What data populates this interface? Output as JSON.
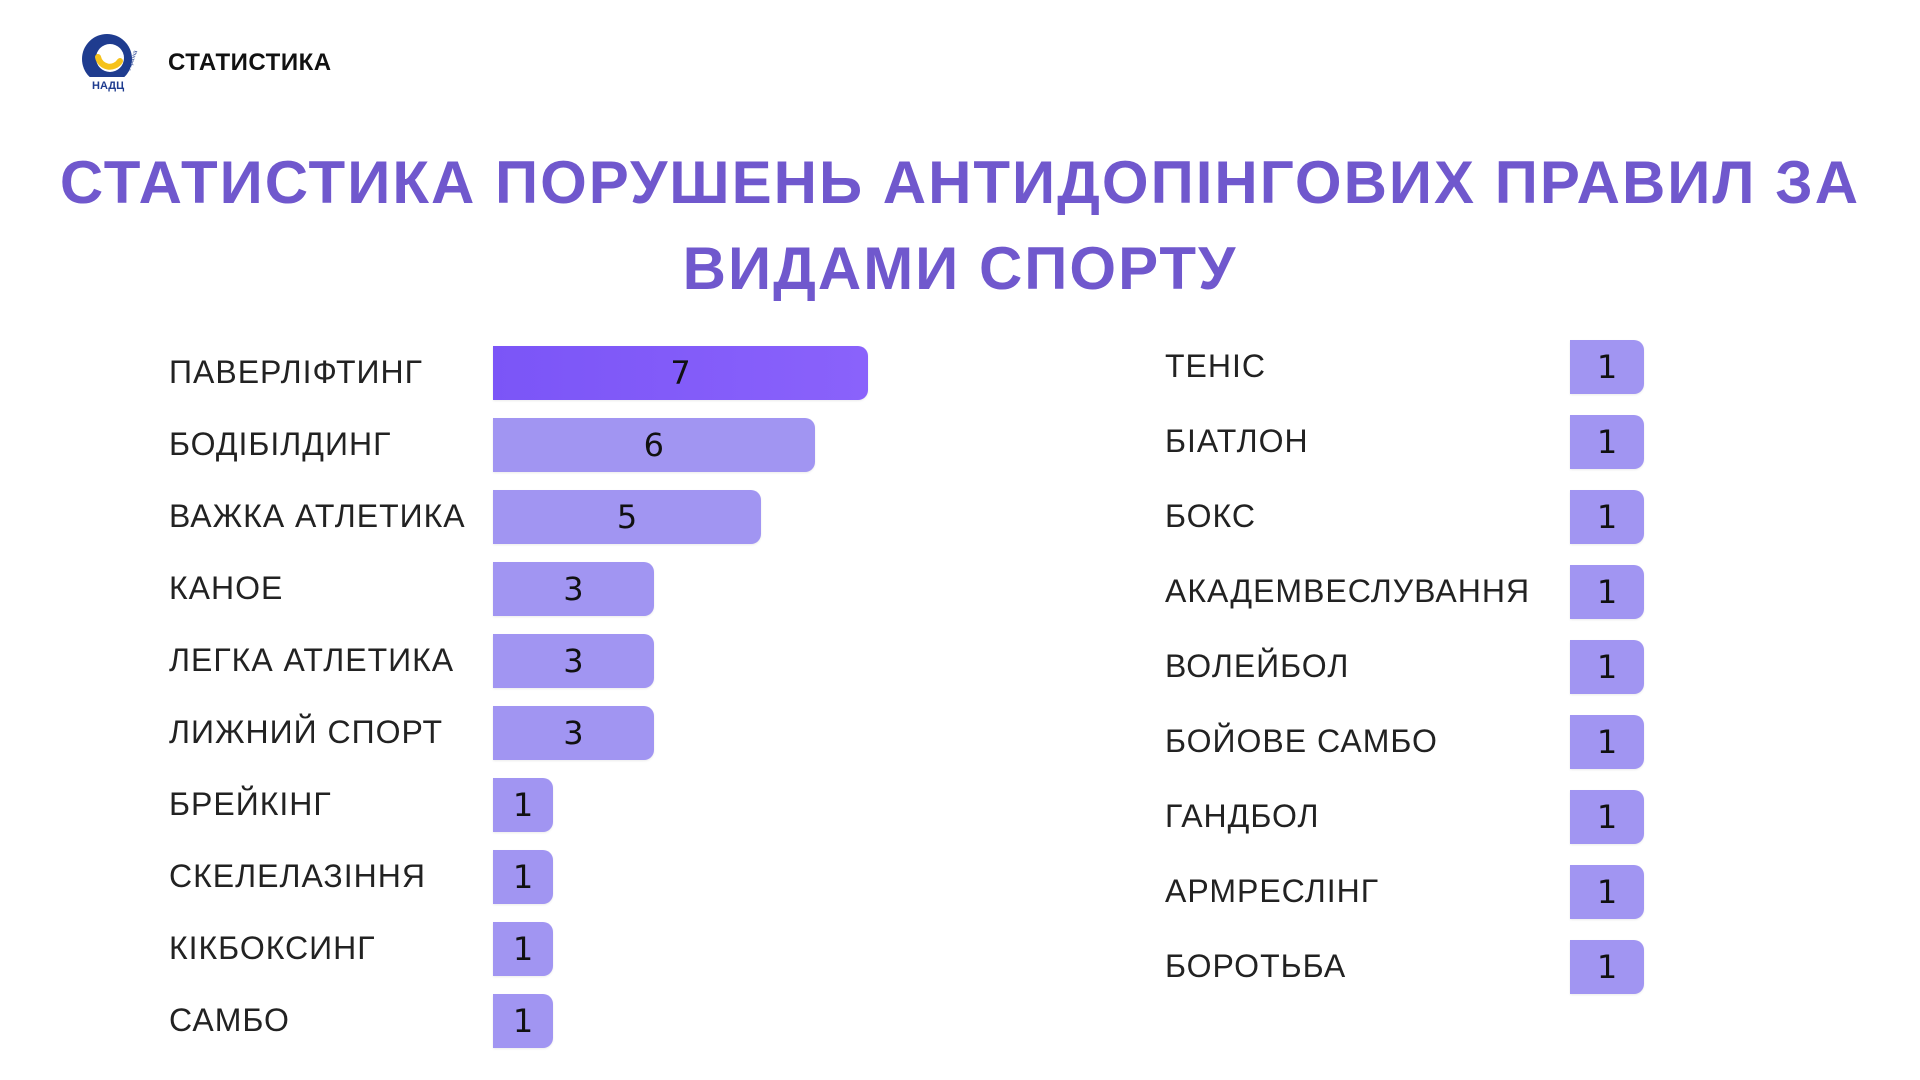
{
  "header": {
    "logo_text": "НАДЦ",
    "logo_side_text": "Україна",
    "title": "СТАТИСТИКА"
  },
  "main_title": {
    "line1": "СТАТИСТИКА ПОРУШЕНЬ АНТИДОПІНГОВИХ ПРАВИЛ ЗА",
    "line2": "ВИДАМИ СПОРТУ"
  },
  "colors": {
    "title": "#7058cd",
    "bar": "#a195f2",
    "bar_highlight": "#7b55f7",
    "logo_blue": "#1f3c8f",
    "logo_yellow": "#f6c21c"
  },
  "chart_data": [
    {
      "type": "bar",
      "orientation": "horizontal",
      "categories": [
        "ПАВЕРЛІФТИНГ",
        "БОДІБІЛДИНГ",
        "ВАЖКА АТЛЕТИКА",
        "КАНОЕ",
        "ЛЕГКА АТЛЕТИКА",
        "ЛИЖНИЙ СПОРТ",
        "БРЕЙКІНГ",
        "СКЕЛЕЛАЗІННЯ",
        "КІКБОКСИНГ",
        "САМБО"
      ],
      "values": [
        7,
        6,
        5,
        3,
        3,
        3,
        1,
        1,
        1,
        1
      ],
      "highlight_index": 0,
      "data_labels": true,
      "grid": false
    },
    {
      "type": "bar",
      "orientation": "horizontal",
      "categories": [
        "ТЕНІС",
        "БІАТЛОН",
        "БОКС",
        "АКАДЕМВЕСЛУВАННЯ",
        "ВОЛЕЙБОЛ",
        "БОЙОВЕ САМБО",
        "ГАНДБОЛ",
        "АРМРЕСЛІНГ",
        "БОРОТЬБА"
      ],
      "values": [
        1,
        1,
        1,
        1,
        1,
        1,
        1,
        1,
        1
      ],
      "data_labels": true,
      "grid": false
    }
  ]
}
